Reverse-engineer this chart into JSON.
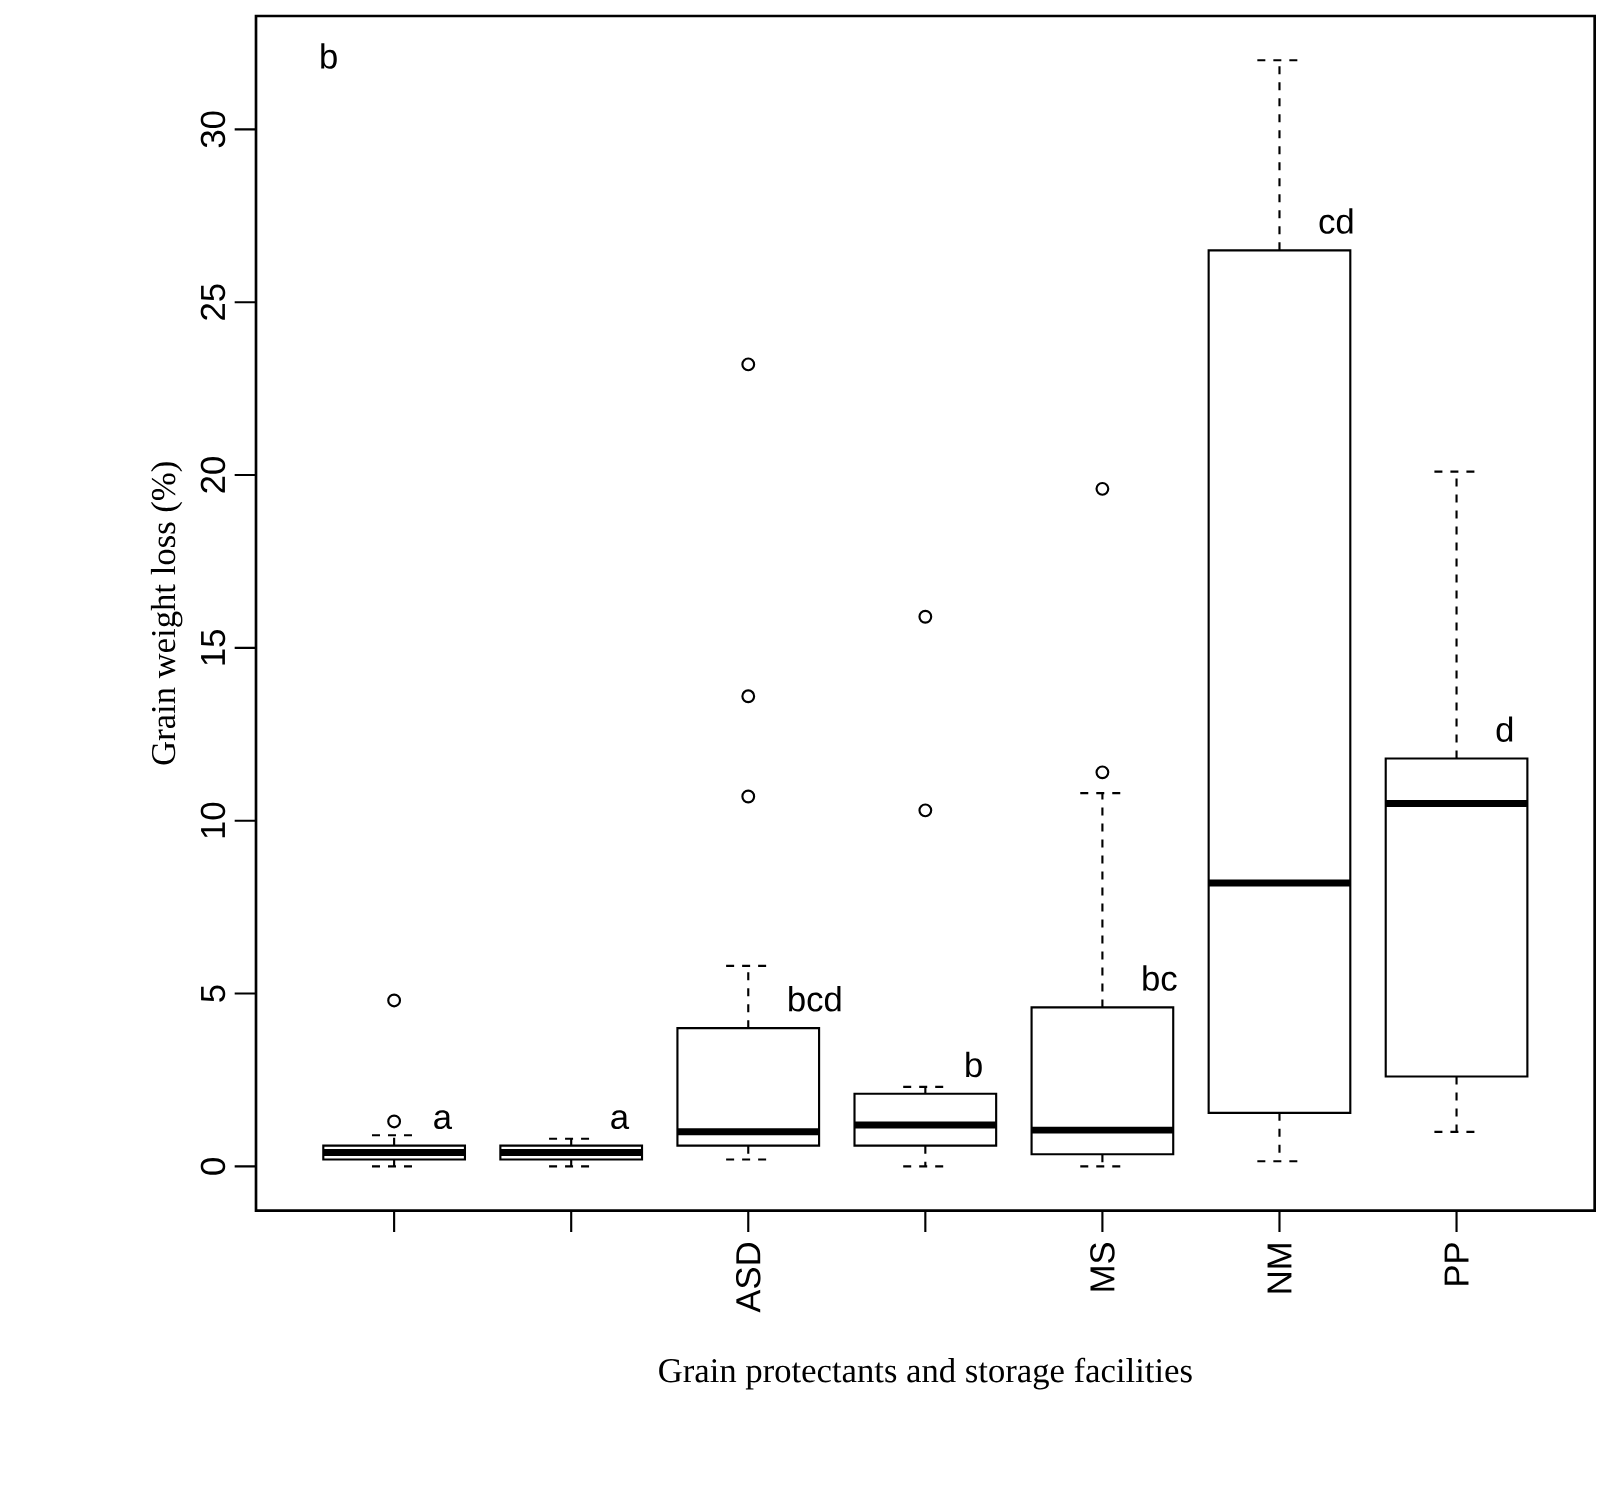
{
  "chart_data": {
    "type": "box",
    "xlabel": "Grain protectants and storage facilities",
    "ylabel": "Grain weight loss (%)",
    "categories": [
      null,
      null,
      "ASD",
      null,
      "MS",
      "NM",
      "PP"
    ],
    "boxes": [
      {
        "low": 0.0,
        "q1": 0.2,
        "median": 0.4,
        "q3": 0.6,
        "high": 0.9,
        "outliers": [
          1.3,
          4.8
        ]
      },
      {
        "low": 0.0,
        "q1": 0.2,
        "median": 0.4,
        "q3": 0.6,
        "high": 0.8
      },
      {
        "low": 0.2,
        "q1": 0.6,
        "median": 1.0,
        "q3": 4.0,
        "high": 5.8,
        "outliers": [
          10.7,
          13.6,
          23.2
        ]
      },
      {
        "low": 0.0,
        "q1": 0.6,
        "median": 1.2,
        "q3": 2.1,
        "high": 2.3,
        "outliers": [
          10.3,
          15.9
        ]
      },
      {
        "low": 0.0,
        "q1": 0.35,
        "median": 1.05,
        "q3": 4.6,
        "high": 10.8,
        "outliers": [
          11.4,
          19.6
        ]
      },
      {
        "low": 0.15,
        "q1": 1.55,
        "median": 8.2,
        "q3": 26.5,
        "high": 32.0
      },
      {
        "low": 1.0,
        "q1": 2.6,
        "median": 10.5,
        "q3": 11.8,
        "high": 20.1
      }
    ],
    "ylim": [
      -1.28,
      33.28
    ],
    "yticks": [
      0,
      5,
      10,
      15,
      20,
      25,
      30
    ],
    "annotations": [
      "b",
      "a",
      "a",
      "bcd",
      "b",
      "bc",
      "cd",
      "d"
    ]
  }
}
